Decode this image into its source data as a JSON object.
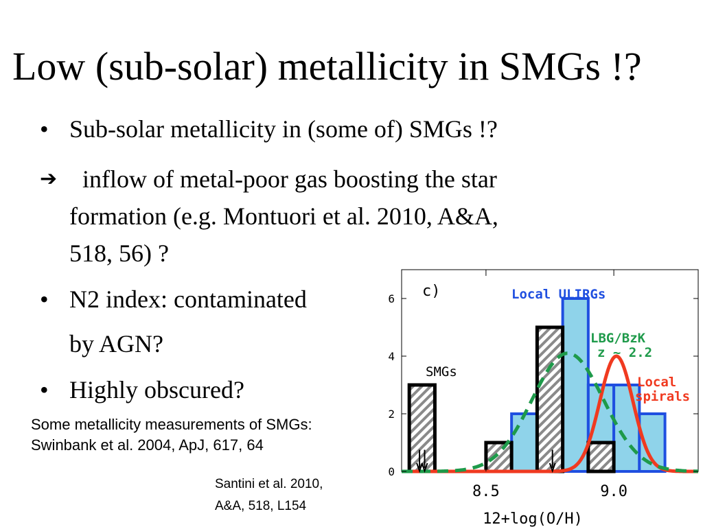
{
  "slide": {
    "title": "Low (sub-solar) metallicity in SMGs !?",
    "bullets": [
      {
        "marker": "•",
        "lines": [
          "Sub-solar metallicity in (some of) SMGs !?"
        ]
      },
      {
        "marker": "➔",
        "lines": [
          "inflow of metal-poor gas boosting the star",
          "formation (e.g. Montuori et al. 2010, A&A,",
          "518, 56) ?"
        ]
      },
      {
        "marker": "•",
        "lines": [
          "N2 index: contaminated",
          "by AGN?"
        ]
      },
      {
        "marker": "•",
        "lines": [
          "Highly obscured?"
        ]
      }
    ],
    "note_swinbank": [
      "Some metallicity measurements of SMGs:",
      "Swinbank et al. 2004, ApJ, 617, 64"
    ],
    "note_santini": [
      "Santini et al. 2010,",
      "A&A, 518, L154"
    ]
  },
  "chart_data": {
    "type": "bar",
    "panel_label": "c)",
    "xlabel": "12+log(O/H)",
    "ylabel": "",
    "xlim": [
      8.17,
      9.33
    ],
    "ylim": [
      0,
      7
    ],
    "xticks": [
      8.5,
      9.0
    ],
    "yticks": [
      0,
      2,
      4,
      6
    ],
    "bin_width": 0.1,
    "series": [
      {
        "name": "Local ULIRGs",
        "kind": "histogram",
        "color": "#1f4fe0",
        "fill": "#8fd3ea",
        "bins": [
          {
            "x0": 8.6,
            "x1": 8.7,
            "value": 2
          },
          {
            "x0": 8.7,
            "x1": 8.8,
            "value": 4
          },
          {
            "x0": 8.8,
            "x1": 8.9,
            "value": 6
          },
          {
            "x0": 8.9,
            "x1": 9.0,
            "value": 3
          },
          {
            "x0": 9.0,
            "x1": 9.1,
            "value": 3
          },
          {
            "x0": 9.1,
            "x1": 9.2,
            "value": 2
          }
        ]
      },
      {
        "name": "SMGs",
        "kind": "histogram",
        "color": "#000000",
        "fill": "hatched",
        "bins": [
          {
            "x0": 8.2,
            "x1": 8.3,
            "value": 3
          },
          {
            "x0": 8.5,
            "x1": 8.6,
            "value": 1
          },
          {
            "x0": 8.7,
            "x1": 8.8,
            "value": 5
          },
          {
            "x0": 8.9,
            "x1": 9.0,
            "value": 1
          }
        ],
        "upper_limit_arrows_x": [
          8.24,
          8.26,
          8.76
        ]
      },
      {
        "name": "LBG/BzK z ~ 2.2",
        "kind": "curve",
        "color": "#1e9a4a",
        "style": "dashed",
        "peak_x": 8.82,
        "peak_y": 4.1,
        "sigma": 0.14
      },
      {
        "name": "Local spirals",
        "kind": "curve",
        "color": "#f03a20",
        "style": "solid",
        "peak_x": 9.01,
        "peak_y": 4.0,
        "sigma": 0.065
      }
    ],
    "labels": {
      "ulirgs": "Local ULIRGs",
      "smgs": "SMGs",
      "lbg_line1": "LBG/BzK",
      "lbg_line2": "z ~ 2.2",
      "spirals_line1": "Local",
      "spirals_line2": "spirals"
    },
    "colors": {
      "ulirg_edge": "#1f4fe0",
      "ulirg_fill": "#8fd3ea",
      "smg_edge": "#000000",
      "lbg": "#1e9a4a",
      "spirals": "#f03a20"
    }
  }
}
